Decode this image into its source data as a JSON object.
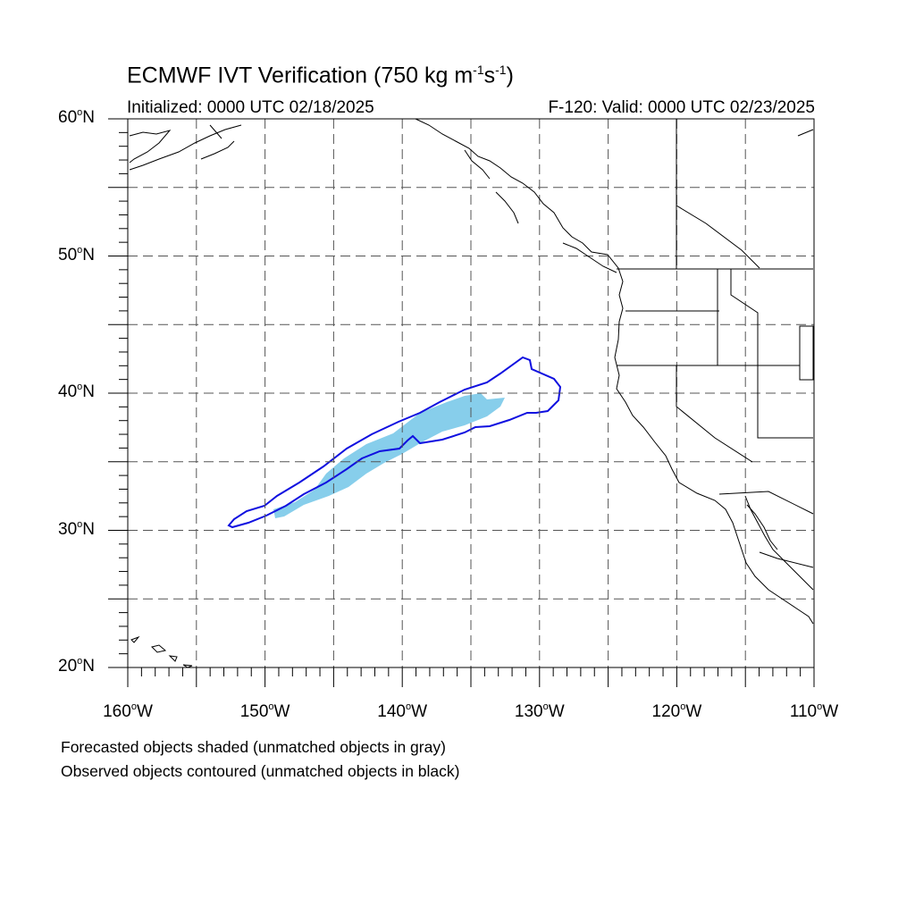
{
  "title": {
    "main": "ECMWF IVT Verification (750 kg m",
    "exp1": "-1",
    "mid": "s",
    "exp2": "-1",
    "end": ")"
  },
  "init_text": "Initialized: 0000 UTC 02/18/2025",
  "valid_text": "F-120: Valid: 0000 UTC 02/23/2025",
  "lat_labels": [
    {
      "deg": "60",
      "hem": "N"
    },
    {
      "deg": "50",
      "hem": "N"
    },
    {
      "deg": "40",
      "hem": "N"
    },
    {
      "deg": "30",
      "hem": "N"
    },
    {
      "deg": "20",
      "hem": "N"
    }
  ],
  "lon_labels": [
    {
      "deg": "160",
      "hem": "W"
    },
    {
      "deg": "150",
      "hem": "W"
    },
    {
      "deg": "140",
      "hem": "W"
    },
    {
      "deg": "130",
      "hem": "W"
    },
    {
      "deg": "120",
      "hem": "W"
    },
    {
      "deg": "110",
      "hem": "W"
    }
  ],
  "notes": [
    "Forecasted objects shaded (unmatched objects in gray)",
    "Observed objects contoured (unmatched objects in black)"
  ],
  "colors": {
    "forecast_fill": "#87ceeb",
    "observed_contour": "#1010e0",
    "grid": "#555555",
    "coast": "#000000"
  },
  "map_extent": {
    "lon": [
      -160,
      -110
    ],
    "lat": [
      20,
      60
    ]
  }
}
